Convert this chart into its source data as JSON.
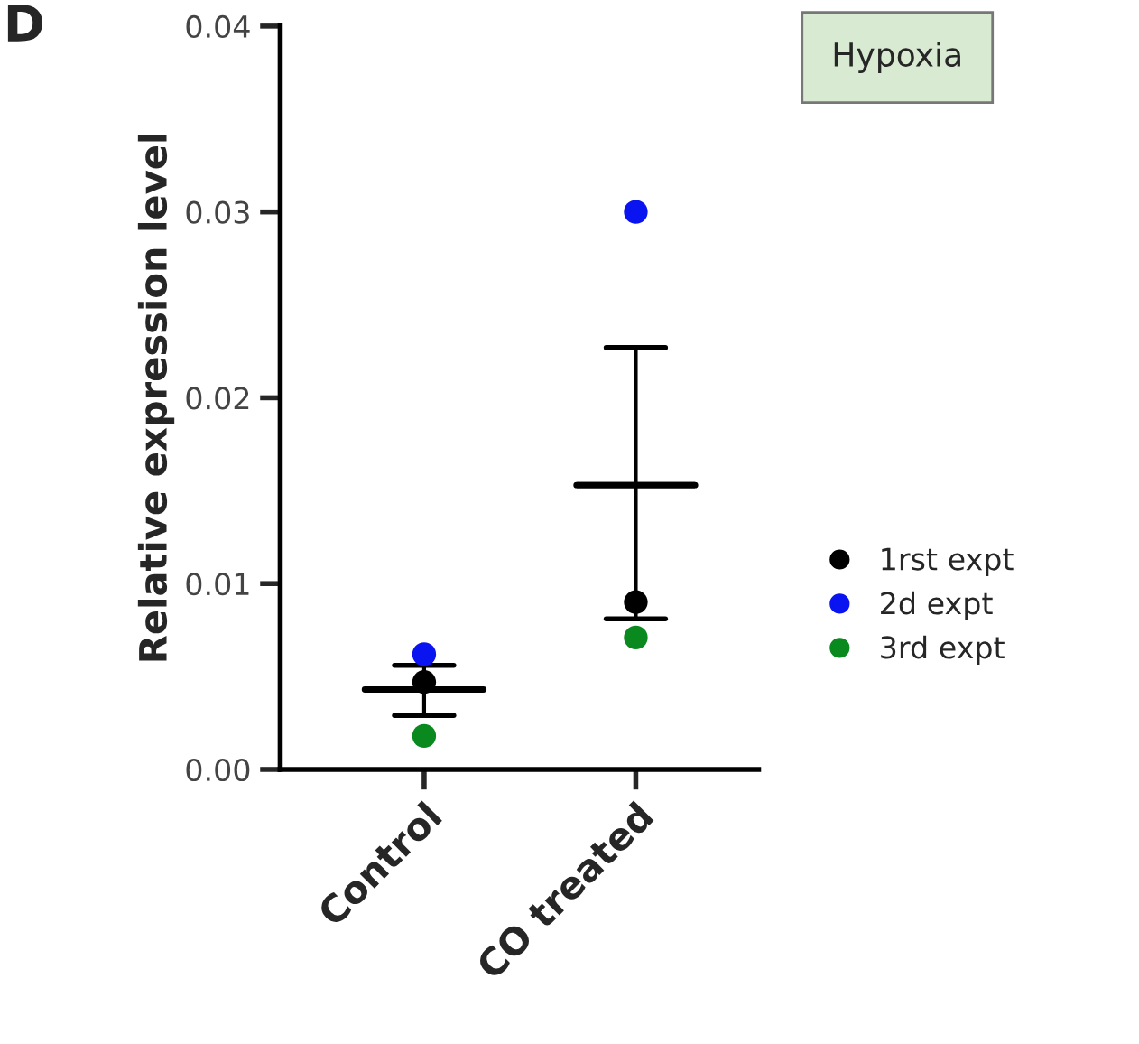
{
  "chart_data": {
    "type": "scatter",
    "ylabel": "Relative expression level",
    "categories": [
      "Control",
      "CO treated"
    ],
    "ylim": [
      0,
      0.04
    ],
    "yticks": [
      {
        "value": 0,
        "label": "0.00"
      },
      0.01,
      0.02,
      0.03,
      0.04
    ],
    "grid": false,
    "legend": "right",
    "marker": "circle",
    "annotations": [
      "D",
      "Hypoxia"
    ],
    "series": [
      {
        "name": "1rst expt",
        "color": "#000000",
        "x": [
          "Control",
          "CO treated"
        ],
        "values": [
          0.0047,
          0.009
        ]
      },
      {
        "name": "2d expt",
        "color": "#0a14f0",
        "x": [
          "Control",
          "CO treated"
        ],
        "values": [
          0.0062,
          0.03
        ]
      },
      {
        "name": "3rd expt",
        "color": "#0a8a1e",
        "x": [
          "Control",
          "CO treated"
        ],
        "values": [
          0.0018,
          0.0071
        ]
      },
      {
        "type": "box",
        "color": "#000000",
        "boxes": [
          {
            "low": 0.0029,
            "q1": 0.0043,
            "median": 0.0043,
            "q3": 0.0043,
            "high": 0.0056
          },
          {
            "low": 0.0081,
            "q1": 0.0153,
            "median": 0.0153,
            "q3": 0.0153,
            "high": 0.0227
          }
        ]
      }
    ]
  }
}
